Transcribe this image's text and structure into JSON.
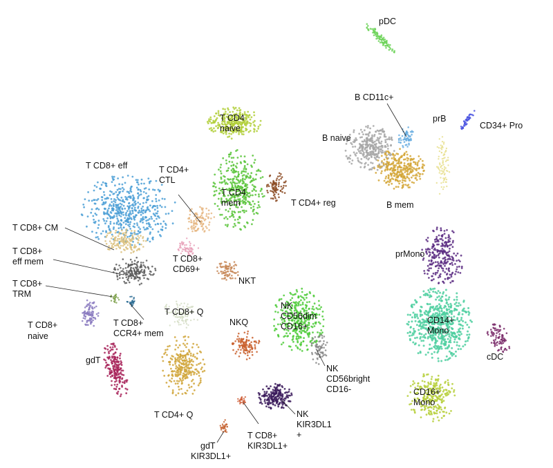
{
  "chart_data": {
    "type": "scatter",
    "title": "",
    "xlabel": "",
    "ylabel": "",
    "grid": false,
    "legend": "none",
    "clusters": [
      {
        "label": "pDC",
        "color": "#6fd35a"
      },
      {
        "label": "B CD11c+",
        "color": "#6aaee0"
      },
      {
        "label": "prB",
        "color": "#e8df8e"
      },
      {
        "label": "CD34+ Pro",
        "color": "#4a54e0"
      },
      {
        "label": "B naive",
        "color": "#a6a6a6"
      },
      {
        "label": "B mem",
        "color": "#d4a637"
      },
      {
        "label": "T CD4 naive",
        "color": "#b2cf3a"
      },
      {
        "label": "T CD4 mem",
        "color": "#59c43a"
      },
      {
        "label": "T CD4+ reg",
        "color": "#8b4a22"
      },
      {
        "label": "T CD8+ eff",
        "color": "#4b9fd6"
      },
      {
        "label": "T CD4+ CTL",
        "color": "#e6b784"
      },
      {
        "label": "T CD8+ CM",
        "color": "#dbc07d"
      },
      {
        "label": "T CD8+ eff mem",
        "color": "#5c5c5c"
      },
      {
        "label": "T CD8+ TRM",
        "color": "#7da04a"
      },
      {
        "label": "T CD8+ CD69+",
        "color": "#e8a0b8"
      },
      {
        "label": "NKT",
        "color": "#c8895b"
      },
      {
        "label": "T CD8+ naive",
        "color": "#8a7ac0"
      },
      {
        "label": "T CD8+ CCR4+ mem",
        "color": "#2f6e95"
      },
      {
        "label": "T CD8+ Q",
        "color": "#d5ddc6"
      },
      {
        "label": "NKQ",
        "color": "#c95f2b"
      },
      {
        "label": "NK CD56dim CD16+",
        "color": "#4fcb3a"
      },
      {
        "label": "NK CD56bright CD16-",
        "color": "#8a8a8a"
      },
      {
        "label": "gdT",
        "color": "#a8245a"
      },
      {
        "label": "T CD4+ Q",
        "color": "#d0a438"
      },
      {
        "label": "NK KIR3DL1 +",
        "color": "#3b1b5c"
      },
      {
        "label": "T CD8+ KIR3DL1+",
        "color": "#cf5f38"
      },
      {
        "label": "gdT KIR3DL1+",
        "color": "#c4602e"
      },
      {
        "label": "prMono",
        "color": "#5c2d82"
      },
      {
        "label": "CD14+ Mono",
        "color": "#4fcfa0"
      },
      {
        "label": "cDC",
        "color": "#7a2b6a"
      },
      {
        "label": "CD16+ Mono",
        "color": "#b6cf3a"
      }
    ]
  },
  "labels": {
    "pdc": "pDC",
    "b_cd11c": "B CD11c+",
    "prb": "prB",
    "cd34": "CD34+ Pro",
    "b_naive": "B naive",
    "b_mem": "B mem",
    "t_cd4_naive_1": "T CD4",
    "t_cd4_naive_2": "naive",
    "t_cd4_mem_1": "T CD4",
    "t_cd4_mem_2": "mem",
    "t_cd4_reg": "T CD4+ reg",
    "t_cd8_eff": "T CD8+ eff",
    "t_cd4_ctl_1": "T CD4+",
    "t_cd4_ctl_2": "CTL",
    "t_cd8_cm": "T CD8+ CM",
    "t_cd8_effmem_1": "T CD8+",
    "t_cd8_effmem_2": "eff mem",
    "t_cd8_trm_1": "T CD8+",
    "t_cd8_trm_2": "TRM",
    "t_cd8_cd69_1": "T CD8+",
    "t_cd8_cd69_2": "CD69+",
    "nkt": "NKT",
    "t_cd8_naive_1": "T CD8+",
    "t_cd8_naive_2": "naive",
    "t_cd8_ccr4_1": "T CD8+",
    "t_cd8_ccr4_2": "CCR4+ mem",
    "t_cd8_q": "T CD8+  Q",
    "nkq": "NKQ",
    "nk_dim_1": "NK",
    "nk_dim_2": "CD56dim",
    "nk_dim_3": "CD16+",
    "nk_bright_1": "NK",
    "nk_bright_2": "CD56bright",
    "nk_bright_3": "CD16-",
    "gdt": "gdT",
    "t_cd4_q": "T CD4+  Q",
    "nk_kir_1": "NK",
    "nk_kir_2": "KIR3DL1",
    "nk_kir_3": "+",
    "t_cd8_kir_1": "T CD8+",
    "t_cd8_kir_2": "KIR3DL1+",
    "gdt_kir_1": "gdT",
    "gdt_kir_2": "KIR3DL1+",
    "prmono": "prMono",
    "cd14_1": "CD14+",
    "cd14_2": "Mono",
    "cdc": "cDC",
    "cd16_1": "CD16+",
    "cd16_2": "Mono"
  }
}
